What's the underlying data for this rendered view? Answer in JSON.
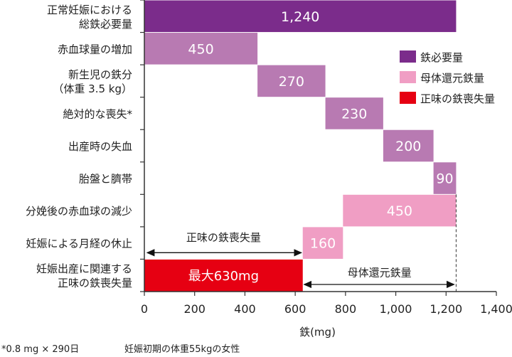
{
  "chart_data": {
    "type": "bar",
    "subtype": "waterfall-horizontal",
    "xlabel": "鉄(mg)",
    "xlim": [
      0,
      1400
    ],
    "xticks": [
      "0",
      "200",
      "400",
      "600",
      "800",
      "1,000",
      "1,200",
      "1,400"
    ],
    "xtick_values": [
      0,
      200,
      400,
      600,
      800,
      1000,
      1200,
      1400
    ],
    "categories": [
      [
        "正常妊娠における",
        "総鉄必要量"
      ],
      [
        "赤血球量の増加"
      ],
      [
        "新生児の鉄分",
        "（体重 3.5 kg）"
      ],
      [
        "絶対的な喪失*"
      ],
      [
        "出産時の失血"
      ],
      [
        "胎盤と臍帯"
      ],
      [
        "分娩後の赤血球の減少"
      ],
      [
        "妊娠による月経の休止"
      ],
      [
        "妊娠出産に関連する",
        "正味の鉄喪失量"
      ]
    ],
    "bars": [
      {
        "start": 0,
        "end": 1240,
        "label": "1,240",
        "series": "鉄必要量"
      },
      {
        "start": 0,
        "end": 450,
        "label": "450",
        "series": "鉄必要量(内訳)"
      },
      {
        "start": 450,
        "end": 720,
        "label": "270",
        "series": "鉄必要量(内訳)"
      },
      {
        "start": 720,
        "end": 950,
        "label": "230",
        "series": "鉄必要量(内訳)"
      },
      {
        "start": 950,
        "end": 1150,
        "label": "200",
        "series": "鉄必要量(内訳)"
      },
      {
        "start": 1150,
        "end": 1240,
        "label": "90",
        "series": "鉄必要量(内訳)"
      },
      {
        "start": 790,
        "end": 1240,
        "label": "450",
        "series": "母体還元鉄量"
      },
      {
        "start": 630,
        "end": 790,
        "label": "160",
        "series": "母体還元鉄量"
      },
      {
        "start": 0,
        "end": 630,
        "label": "最大630mg",
        "series": "正味の鉄喪失量"
      }
    ],
    "colors": {
      "鉄必要量": "#7b2c8b",
      "鉄必要量(内訳)": "#b87ab2",
      "母体還元鉄量": "#f09ec4",
      "正味の鉄喪失量": "#e60012"
    },
    "legend": {
      "placement": "right",
      "items": [
        {
          "label": "鉄必要量",
          "color": "#7b2c8b"
        },
        {
          "label": "母体還元鉄量",
          "color": "#f09ec4"
        },
        {
          "label": "正味の鉄喪失量",
          "color": "#e60012"
        }
      ]
    },
    "annotations": {
      "net_loss_arrow": {
        "label": "正味の鉄喪失量",
        "from": 0,
        "to": 630
      },
      "return_arrow": {
        "label": "母体還元鉄量",
        "from": 630,
        "to": 1240
      },
      "dashed_line_at": 1240
    },
    "grid": false
  },
  "footnotes": {
    "left": "*0.8 mg × 290日",
    "right": "妊娠初期の体重55kgの女性"
  }
}
